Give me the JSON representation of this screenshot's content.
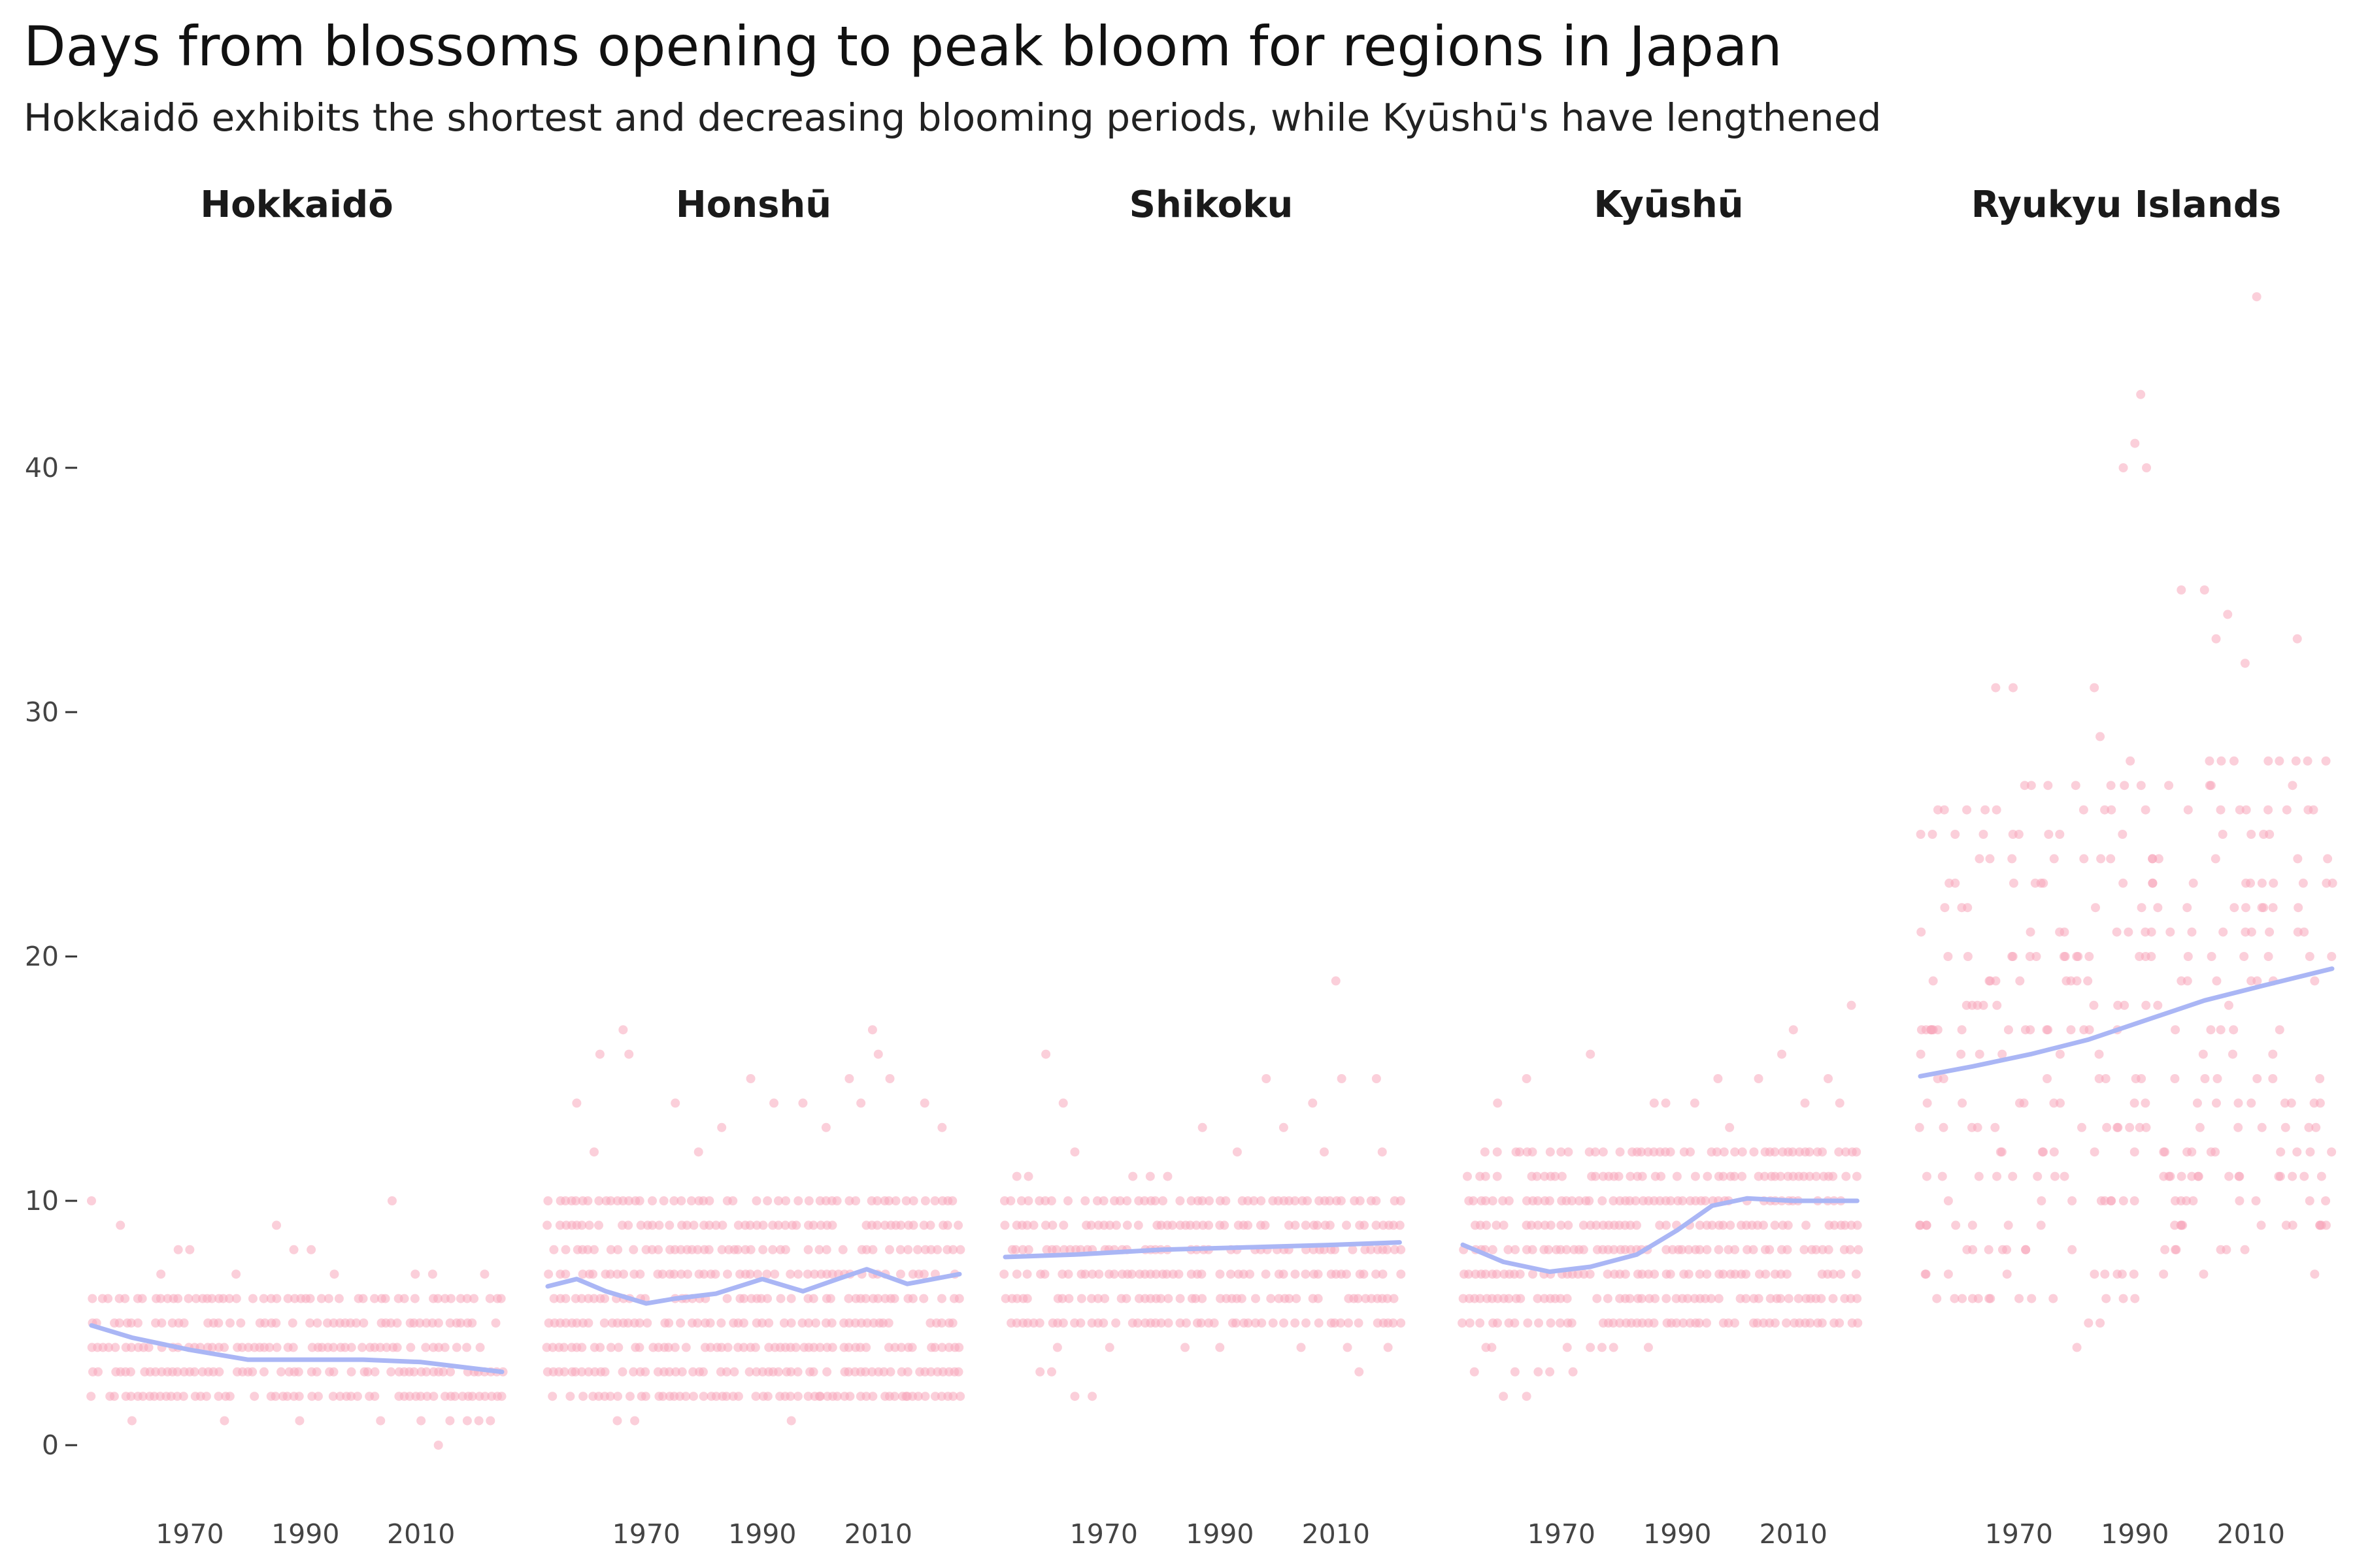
{
  "chart_data": {
    "type": "scatter",
    "title": "Days from blossoms opening to peak bloom for regions in Japan",
    "subtitle": "Hokkaidō exhibits the shortest and decreasing blooming periods, while Kyūshū's have lengthened",
    "xlabel": "",
    "ylabel": "",
    "ylim": [
      0,
      48
    ],
    "yticks": [
      0,
      10,
      20,
      30,
      40
    ],
    "xticks": [
      1970,
      1990,
      2010
    ],
    "xlim": [
      1953,
      2024
    ],
    "grid": false,
    "legend": "none",
    "point_color": "#f7a8bc",
    "trend_color": "#aab6f5",
    "facets": [
      {
        "name": "Hokkaidō",
        "trend": [
          [
            1953,
            4.9
          ],
          [
            1960,
            4.4
          ],
          [
            1970,
            3.9
          ],
          [
            1980,
            3.5
          ],
          [
            1990,
            3.5
          ],
          [
            2000,
            3.5
          ],
          [
            2010,
            3.4
          ],
          [
            2024,
            3.0
          ]
        ],
        "scatter": {
          "years": [
            1953,
            2024
          ],
          "dense_min": 2,
          "dense_max": 6,
          "step": 1,
          "extra": [
            [
              1953,
              10
            ],
            [
              1958,
              9
            ],
            [
              1968,
              8
            ],
            [
              1970,
              8
            ],
            [
              1985,
              9
            ],
            [
              1988,
              8
            ],
            [
              1991,
              8
            ],
            [
              2005,
              10
            ],
            [
              2013,
              0
            ],
            [
              2009,
              7
            ],
            [
              2012,
              7
            ],
            [
              2021,
              7
            ],
            [
              1965,
              7
            ],
            [
              1978,
              7
            ],
            [
              1995,
              7
            ],
            [
              1960,
              1
            ],
            [
              1976,
              1
            ],
            [
              1989,
              1
            ],
            [
              2003,
              1
            ],
            [
              2010,
              1
            ],
            [
              2015,
              1
            ],
            [
              2018,
              1
            ],
            [
              2020,
              1
            ],
            [
              2022,
              1
            ]
          ]
        }
      },
      {
        "name": "Honshū",
        "trend": [
          [
            1953,
            6.5
          ],
          [
            1958,
            6.8
          ],
          [
            1963,
            6.3
          ],
          [
            1970,
            5.8
          ],
          [
            1975,
            6.0
          ],
          [
            1982,
            6.2
          ],
          [
            1990,
            6.8
          ],
          [
            1997,
            6.3
          ],
          [
            2003,
            6.8
          ],
          [
            2008,
            7.2
          ],
          [
            2015,
            6.6
          ],
          [
            2024,
            7.0
          ]
        ],
        "scatter": {
          "years": [
            1953,
            2024
          ],
          "dense_min": 2,
          "dense_max": 10,
          "step": 1,
          "extra": [
            [
              1962,
              16
            ],
            [
              1966,
              17
            ],
            [
              1967,
              16
            ],
            [
              1975,
              14
            ],
            [
              1983,
              13
            ],
            [
              1988,
              15
            ],
            [
              1992,
              14
            ],
            [
              1997,
              14
            ],
            [
              2005,
              15
            ],
            [
              2007,
              14
            ],
            [
              2009,
              17
            ],
            [
              2010,
              16
            ],
            [
              2012,
              15
            ],
            [
              2018,
              14
            ],
            [
              2021,
              13
            ],
            [
              1958,
              14
            ],
            [
              1961,
              12
            ],
            [
              1979,
              12
            ],
            [
              2001,
              13
            ],
            [
              1965,
              1
            ],
            [
              1968,
              1
            ],
            [
              1995,
              1
            ],
            [
              2000,
              2
            ],
            [
              2015,
              2
            ],
            [
              2022,
              2
            ]
          ]
        }
      },
      {
        "name": "Shikoku",
        "trend": [
          [
            1953,
            7.7
          ],
          [
            1965,
            7.8
          ],
          [
            1980,
            8.0
          ],
          [
            1995,
            8.1
          ],
          [
            2010,
            8.2
          ],
          [
            2021,
            8.3
          ]
        ],
        "scatter": {
          "years": [
            1953,
            2021
          ],
          "dense_min": 5,
          "dense_max": 10,
          "step": 1,
          "extra": [
            [
              1960,
              16
            ],
            [
              1963,
              14
            ],
            [
              1965,
              12
            ],
            [
              1987,
              13
            ],
            [
              1993,
              12
            ],
            [
              1998,
              15
            ],
            [
              2001,
              13
            ],
            [
              2006,
              14
            ],
            [
              2010,
              19
            ],
            [
              2011,
              15
            ],
            [
              2017,
              15
            ],
            [
              2018,
              12
            ],
            [
              1955,
              11
            ],
            [
              1957,
              11
            ],
            [
              1975,
              11
            ],
            [
              1978,
              11
            ],
            [
              1981,
              11
            ],
            [
              2008,
              12
            ],
            [
              1961,
              3
            ],
            [
              1962,
              4
            ],
            [
              1965,
              2
            ],
            [
              1968,
              2
            ],
            [
              1971,
              4
            ],
            [
              1984,
              4
            ],
            [
              1990,
              4
            ],
            [
              2004,
              4
            ],
            [
              2012,
              4
            ],
            [
              2014,
              3
            ],
            [
              2019,
              4
            ],
            [
              1959,
              3
            ]
          ]
        }
      },
      {
        "name": "Kyūshū",
        "trend": [
          [
            1953,
            8.2
          ],
          [
            1960,
            7.5
          ],
          [
            1968,
            7.1
          ],
          [
            1975,
            7.3
          ],
          [
            1983,
            7.8
          ],
          [
            1990,
            8.8
          ],
          [
            1996,
            9.8
          ],
          [
            2002,
            10.1
          ],
          [
            2010,
            10.0
          ],
          [
            2021,
            10.0
          ]
        ],
        "scatter": {
          "years": [
            1953,
            2021
          ],
          "dense_min": 5,
          "dense_max": 12,
          "step": 1,
          "extra": [
            [
              1959,
              14
            ],
            [
              1964,
              15
            ],
            [
              1975,
              16
            ],
            [
              1986,
              14
            ],
            [
              1988,
              14
            ],
            [
              1993,
              14
            ],
            [
              1997,
              15
            ],
            [
              1999,
              13
            ],
            [
              2004,
              15
            ],
            [
              2008,
              16
            ],
            [
              2010,
              17
            ],
            [
              2012,
              14
            ],
            [
              2016,
              15
            ],
            [
              2018,
              14
            ],
            [
              2020,
              18
            ],
            [
              1955,
              3
            ],
            [
              1957,
              4
            ],
            [
              1960,
              2
            ],
            [
              1962,
              3
            ],
            [
              1964,
              2
            ],
            [
              1966,
              3
            ],
            [
              1968,
              3
            ],
            [
              1971,
              4
            ],
            [
              1977,
              4
            ],
            [
              1979,
              4
            ],
            [
              1985,
              4
            ],
            [
              1958,
              4
            ],
            [
              1972,
              3
            ],
            [
              1975,
              4
            ]
          ]
        }
      },
      {
        "name": "Ryukyu Islands",
        "trend": [
          [
            1953,
            15.1
          ],
          [
            1962,
            15.5
          ],
          [
            1972,
            16.0
          ],
          [
            1982,
            16.6
          ],
          [
            1992,
            17.4
          ],
          [
            2002,
            18.2
          ],
          [
            2012,
            18.8
          ],
          [
            2024,
            19.5
          ]
        ],
        "scatter": {
          "years": [
            1953,
            2024
          ],
          "dense_min": 6,
          "dense_max": 28,
          "step": 1,
          "sparse": true,
          "extra": [
            [
              1954,
              17
            ],
            [
              1955,
              17
            ],
            [
              1956,
              15
            ],
            [
              1957,
              13
            ],
            [
              1959,
              25
            ],
            [
              1960,
              16
            ],
            [
              1965,
              24
            ],
            [
              1966,
              31
            ],
            [
              1969,
              31
            ],
            [
              1970,
              25
            ],
            [
              1971,
              27
            ],
            [
              1983,
              31
            ],
            [
              1984,
              29
            ],
            [
              1988,
              40
            ],
            [
              1990,
              41
            ],
            [
              1991,
              43
            ],
            [
              1992,
              40
            ],
            [
              1998,
              35
            ],
            [
              2002,
              35
            ],
            [
              2004,
              33
            ],
            [
              2006,
              34
            ],
            [
              2009,
              32
            ],
            [
              2011,
              47
            ],
            [
              2018,
              33
            ],
            [
              1980,
              4
            ],
            [
              1982,
              5
            ],
            [
              1984,
              5
            ],
            [
              1988,
              6
            ],
            [
              1990,
              6
            ],
            [
              1962,
              9
            ],
            [
              1953,
              9
            ],
            [
              2021,
              7
            ]
          ]
        }
      }
    ]
  }
}
